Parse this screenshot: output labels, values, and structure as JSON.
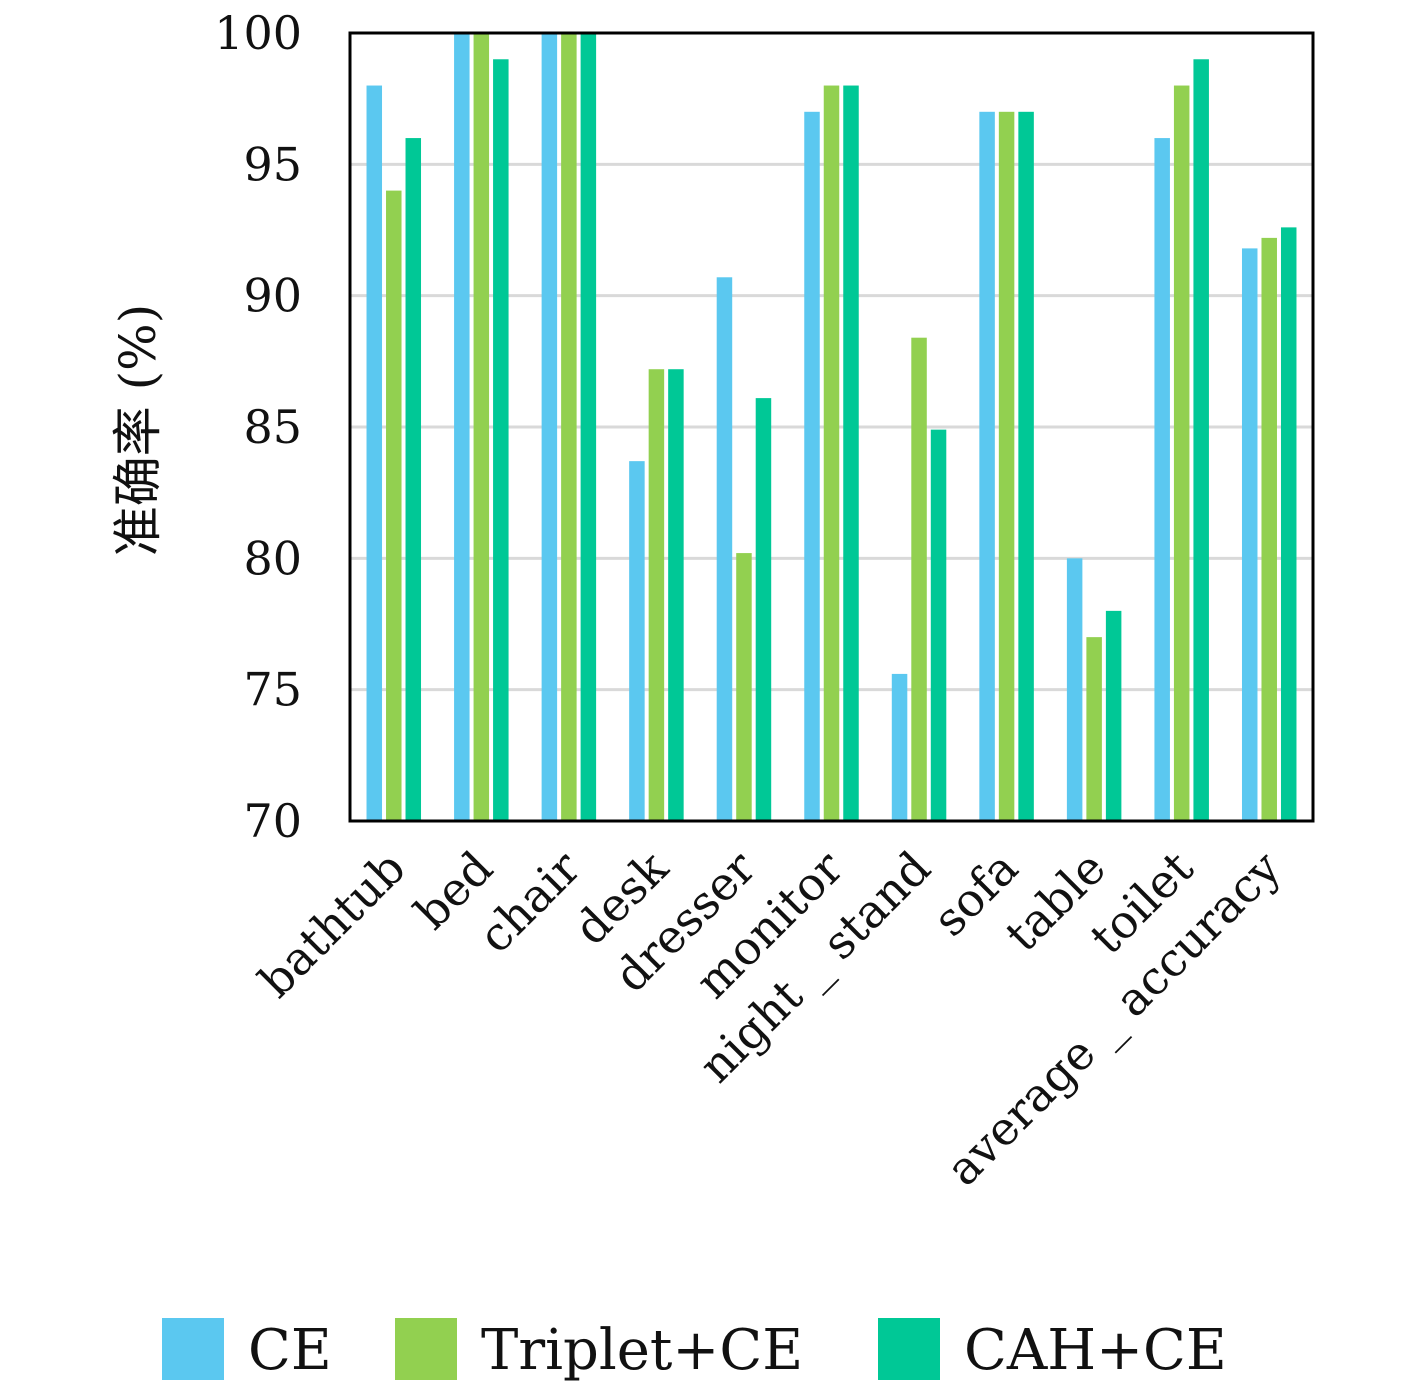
{
  "chart_data": {
    "type": "bar",
    "title": "",
    "xlabel": "",
    "ylabel": "准确率 (%)",
    "ylim": [
      70,
      100
    ],
    "yticks": [
      70,
      75,
      80,
      85,
      90,
      95,
      100
    ],
    "grid": "horizontal",
    "legend_position": "bottom",
    "categories": [
      "bathtub",
      "bed",
      "chair",
      "desk",
      "dresser",
      "monitor",
      "night _ stand",
      "sofa",
      "table",
      "toilet",
      "average _ accuracy"
    ],
    "series": [
      {
        "name": "CE",
        "color": "#5bc8f0",
        "values": [
          98,
          100,
          100,
          83.7,
          90.7,
          97,
          75.6,
          97,
          80,
          96,
          91.8
        ]
      },
      {
        "name": "Triplet+CE",
        "color": "#92d050",
        "values": [
          94,
          100,
          100,
          87.2,
          80.2,
          98,
          88.4,
          97,
          77,
          98,
          92.2
        ]
      },
      {
        "name": "CAH+CE",
        "color": "#00c896",
        "values": [
          96,
          99,
          100,
          87.2,
          86.1,
          98,
          84.9,
          97,
          78,
          99,
          92.6
        ]
      }
    ]
  }
}
